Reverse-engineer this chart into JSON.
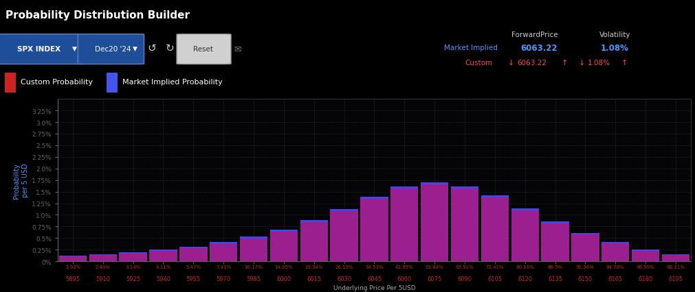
{
  "title": "Probability Distribution Builder",
  "title_bg": "#1a3a8a",
  "fig_bg": "#000000",
  "plot_bg": "#050508",
  "x_labels": [
    5895,
    5910,
    5925,
    5940,
    5955,
    5970,
    5985,
    6000,
    6015,
    6030,
    6045,
    6060,
    6075,
    6090,
    6105,
    6120,
    6135,
    6150,
    6165,
    6180,
    6195
  ],
  "cum_pct_labels": [
    "1.92%",
    "2.44%",
    "3.14%",
    "4.11%",
    "5.47%",
    "7.41%",
    "10.17%",
    "14.05%",
    "19.34%",
    "26.19%",
    "34.53%",
    "43.95%",
    "53.84%",
    "63.51%",
    "72.41%",
    "80.16%",
    "86.5%",
    "91.36%",
    "94.78%",
    "96.99%",
    "98.31%"
  ],
  "y_ticks": [
    0,
    0.25,
    0.5,
    0.75,
    1.0,
    1.25,
    1.5,
    1.75,
    2.0,
    2.25,
    2.5,
    2.75,
    3.0,
    3.25
  ],
  "y_max": 3.5,
  "bar_color_purple": "#9B1F8E",
  "bar_color_blue": "#4444EE",
  "forward_price": "6063.22",
  "volatility": "1.08%",
  "ylabel": "Probability\nper 5 USD",
  "xlabel": "Underlying Price Per 5USD",
  "spx_label": "SPX INDEX",
  "date_label": "Dec20 '24",
  "market_implied_label": "Market Implied",
  "custom_label": "Custom",
  "forward_price_label": "ForwardPrice",
  "volatility_label": "Volatility",
  "prob_values": [
    0.1,
    0.13,
    0.17,
    0.22,
    0.28,
    0.37,
    0.49,
    0.64,
    0.84,
    1.08,
    1.35,
    1.57,
    1.65,
    1.57,
    1.37,
    1.1,
    0.82,
    0.58,
    0.38,
    0.23,
    0.13
  ],
  "market_implied_values": [
    0.115,
    0.15,
    0.195,
    0.255,
    0.315,
    0.415,
    0.535,
    0.685,
    0.885,
    1.125,
    1.395,
    1.615,
    1.695,
    1.615,
    1.415,
    1.145,
    0.855,
    0.615,
    0.415,
    0.26,
    0.155
  ],
  "grid_color": "#2a2a2a",
  "text_color_white": "#FFFFFF",
  "text_color_blue": "#4499FF",
  "text_color_red": "#CC2222",
  "text_color_brightred": "#FF4444"
}
